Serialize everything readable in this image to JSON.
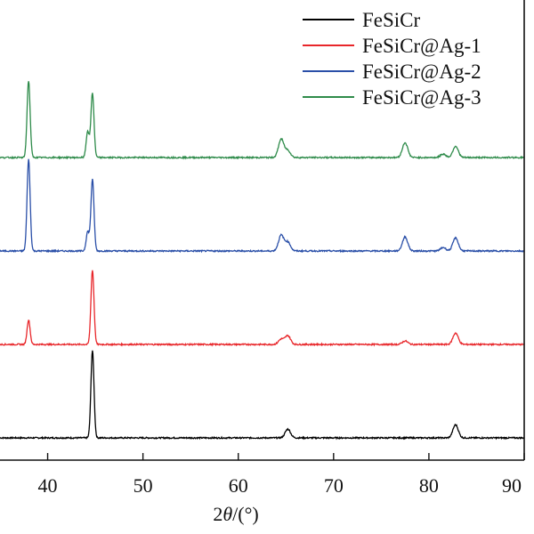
{
  "chart_data": {
    "type": "line",
    "title": "",
    "xlabel": "2θ/(°)",
    "xlabel_parts": {
      "prefix": "2",
      "var": "θ",
      "suffix": "/(°)"
    },
    "ylabel": "",
    "xlim": [
      35,
      90
    ],
    "x_ticks": [
      40,
      50,
      60,
      70,
      80,
      90
    ],
    "x_tick_labels": [
      "40",
      "50",
      "60",
      "70",
      "80",
      "90"
    ],
    "grid": false,
    "legend_position": "top-right",
    "series": [
      {
        "name": "FeSiCr",
        "color": "#000000",
        "offset": 0,
        "peaks": [
          [
            44.7,
            100
          ],
          [
            65.2,
            10
          ],
          [
            82.8,
            15
          ]
        ]
      },
      {
        "name": "FeSiCr@Ag-1",
        "color": "#e8262a",
        "offset": 105,
        "peaks": [
          [
            38.0,
            28
          ],
          [
            44.7,
            85
          ],
          [
            64.5,
            6
          ],
          [
            65.2,
            10
          ],
          [
            77.5,
            4
          ],
          [
            82.8,
            13
          ]
        ]
      },
      {
        "name": "FeSiCr@Ag-2",
        "color": "#2a4fa8",
        "offset": 210,
        "peaks": [
          [
            38.0,
            105
          ],
          [
            44.2,
            22
          ],
          [
            44.7,
            82
          ],
          [
            64.5,
            18
          ],
          [
            65.2,
            10
          ],
          [
            77.5,
            16
          ],
          [
            81.5,
            4
          ],
          [
            82.8,
            15
          ]
        ]
      },
      {
        "name": "FeSiCr@Ag-3",
        "color": "#2e8b4a",
        "offset": 315,
        "peaks": [
          [
            38.0,
            88
          ],
          [
            44.2,
            30
          ],
          [
            44.7,
            74
          ],
          [
            64.5,
            21
          ],
          [
            65.2,
            8
          ],
          [
            77.5,
            17
          ],
          [
            81.5,
            4
          ],
          [
            82.8,
            13
          ]
        ]
      }
    ]
  }
}
